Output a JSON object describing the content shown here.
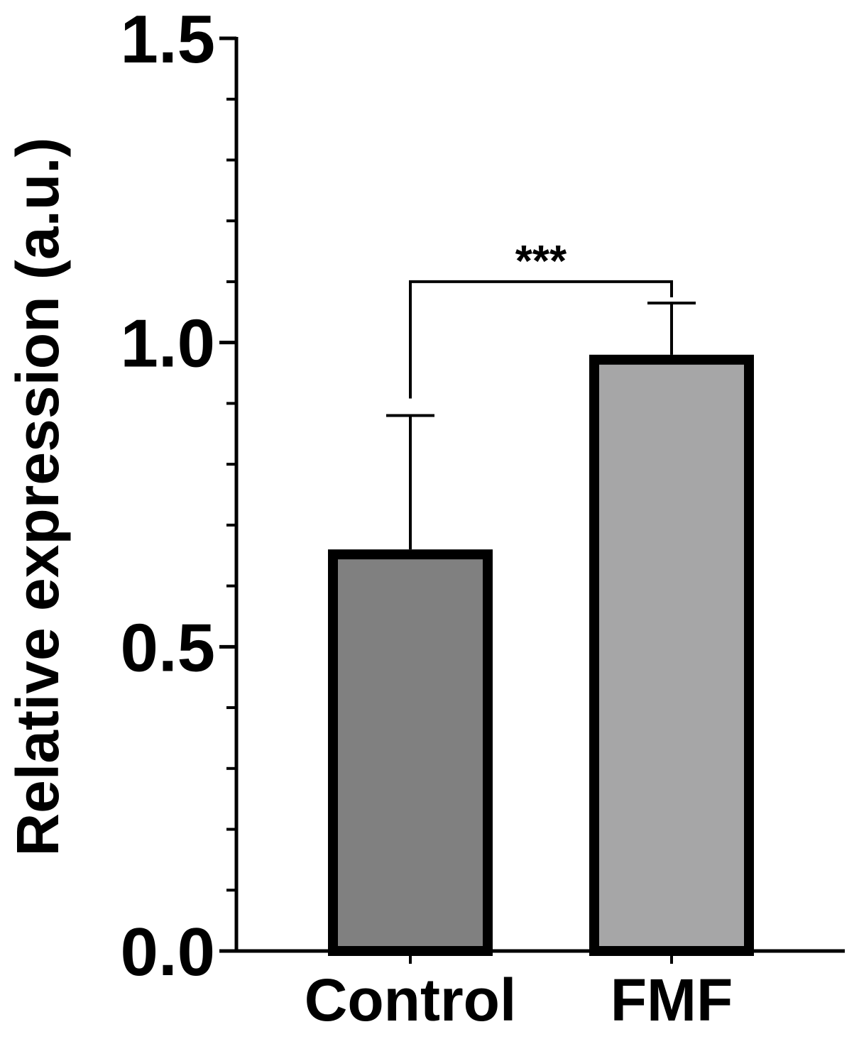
{
  "chart_data": {
    "type": "bar",
    "title": "",
    "xlabel": "",
    "ylabel": "Relative expression (a.u.)",
    "ylim": [
      0,
      1.5
    ],
    "y_ticks": [
      {
        "value": 0.0,
        "label": "0.0"
      },
      {
        "value": 0.5,
        "label": "0.5"
      },
      {
        "value": 1.0,
        "label": "1.0"
      },
      {
        "value": 1.5,
        "label": "1.5"
      }
    ],
    "y_minor_tick_step": 0.1,
    "categories": [
      "Control",
      "FMF"
    ],
    "values": [
      0.66,
      0.98
    ],
    "error_upper": [
      0.22,
      0.085
    ],
    "bar_colors": [
      "#808080",
      "#a6a6a7"
    ],
    "bar_edge_color": "#000000",
    "grid": false,
    "legend": "none",
    "significance": {
      "between": [
        0,
        1
      ],
      "label": "***",
      "level": 1.1
    }
  }
}
